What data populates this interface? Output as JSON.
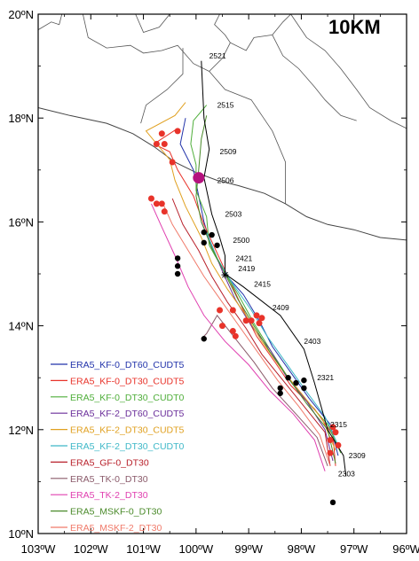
{
  "title_badge": "10KM",
  "axes": {
    "lon_range": [
      -103,
      -96
    ],
    "lat_range": [
      10,
      20
    ],
    "x_ticks": [
      {
        "value": -103,
        "label": "103ºW"
      },
      {
        "value": -102,
        "label": "102ºW"
      },
      {
        "value": -101,
        "label": "101ºW"
      },
      {
        "value": -100,
        "label": "100ºW"
      },
      {
        "value": -99,
        "label": "99ºW"
      },
      {
        "value": -98,
        "label": "98ºW"
      },
      {
        "value": -97,
        "label": "97ºW"
      },
      {
        "value": -96,
        "label": "96ºW"
      }
    ],
    "y_ticks": [
      {
        "value": 10,
        "label": "10ºN"
      },
      {
        "value": 12,
        "label": "12ºN"
      },
      {
        "value": 14,
        "label": "14ºN"
      },
      {
        "value": 16,
        "label": "16ºN"
      },
      {
        "value": 18,
        "label": "18ºN"
      },
      {
        "value": 20,
        "label": "20ºN"
      }
    ]
  },
  "coastline": [
    [
      -103,
      18.2
    ],
    [
      -102.4,
      18.05
    ],
    [
      -101.7,
      17.9
    ],
    [
      -101.2,
      17.7
    ],
    [
      -100.8,
      17.45
    ],
    [
      -100.4,
      17.15
    ],
    [
      -100.0,
      16.95
    ],
    [
      -99.6,
      16.8
    ],
    [
      -99.2,
      16.7
    ],
    [
      -98.7,
      16.55
    ],
    [
      -98.3,
      16.35
    ],
    [
      -97.9,
      16.1
    ],
    [
      -97.5,
      15.95
    ],
    [
      -97.0,
      15.85
    ],
    [
      -96.5,
      15.7
    ],
    [
      -96.0,
      15.65
    ]
  ],
  "state_borders": [
    [
      [
        -103,
        19.7
      ],
      [
        -102.75,
        19.85
      ],
      [
        -102.6,
        19.8
      ],
      [
        -102.55,
        20
      ]
    ],
    [
      [
        -102.15,
        20
      ],
      [
        -102.05,
        19.55
      ],
      [
        -101.7,
        19.35
      ],
      [
        -101.25,
        19.4
      ],
      [
        -101.0,
        19.25
      ],
      [
        -100.65,
        19.3
      ],
      [
        -100.35,
        19.4
      ],
      [
        -100.05,
        19.05
      ],
      [
        -99.75,
        18.9
      ],
      [
        -99.5,
        19.15
      ],
      [
        -99.35,
        19.45
      ],
      [
        -99.05,
        19.3
      ],
      [
        -98.9,
        19.55
      ],
      [
        -98.55,
        19.6
      ],
      [
        -98.35,
        19.85
      ],
      [
        -98.2,
        20
      ]
    ],
    [
      [
        -101.15,
        20
      ],
      [
        -101.0,
        19.65
      ],
      [
        -100.7,
        19.75
      ],
      [
        -100.5,
        20
      ]
    ],
    [
      [
        -99.55,
        20
      ],
      [
        -99.65,
        19.8
      ],
      [
        -99.45,
        19.6
      ],
      [
        -99.35,
        19.45
      ]
    ],
    [
      [
        -100.25,
        19.35
      ],
      [
        -100.25,
        18.85
      ],
      [
        -100.55,
        18.55
      ],
      [
        -100.95,
        18.25
      ],
      [
        -101.05,
        17.9
      ]
    ],
    [
      [
        -99.75,
        18.9
      ],
      [
        -99.45,
        18.55
      ],
      [
        -98.95,
        18.35
      ],
      [
        -98.75,
        18.05
      ],
      [
        -98.55,
        17.75
      ],
      [
        -98.3,
        17.15
      ],
      [
        -98.3,
        16.35
      ]
    ],
    [
      [
        -98.2,
        20
      ],
      [
        -97.9,
        19.55
      ],
      [
        -97.55,
        19.3
      ],
      [
        -97.25,
        18.95
      ],
      [
        -96.95,
        18.55
      ],
      [
        -96.7,
        18.2
      ],
      [
        -96.3,
        17.95
      ],
      [
        -96.0,
        17.8
      ]
    ],
    [
      [
        -98.55,
        19.6
      ],
      [
        -98.35,
        19.2
      ],
      [
        -98.05,
        18.95
      ],
      [
        -97.75,
        18.6
      ],
      [
        -97.55,
        18.35
      ],
      [
        -97.25,
        18.05
      ],
      [
        -96.95,
        17.95
      ]
    ]
  ],
  "best_track": [
    {
      "time": "2521",
      "lon": -99.9,
      "lat": 19.1
    },
    {
      "time": "2515",
      "lon": -99.85,
      "lat": 18.0
    },
    {
      "time": "2509",
      "lon": -99.75,
      "lat": 17.4
    },
    {
      "time": "2506",
      "lon": -99.85,
      "lat": 16.85
    },
    {
      "time": "2503",
      "lon": -99.7,
      "lat": 16.15
    },
    {
      "time": "2500",
      "lon": -99.55,
      "lat": 15.7
    },
    {
      "time": "2421",
      "lon": -99.45,
      "lat": 15.35
    },
    {
      "time": "2419",
      "lon": -99.45,
      "lat": 15.0
    },
    {
      "time": "2415",
      "lon": -99.1,
      "lat": 14.75
    },
    {
      "time": "2409",
      "lon": -98.4,
      "lat": 14.2
    },
    {
      "time": "2403",
      "lon": -97.95,
      "lat": 13.55
    },
    {
      "time": "2321",
      "lon": -97.75,
      "lat": 12.9
    },
    {
      "time": "2315",
      "lon": -97.5,
      "lat": 12.0
    },
    {
      "time": "2309",
      "lon": -97.2,
      "lat": 11.5
    },
    {
      "time": "2303",
      "lon": -97.15,
      "lat": 11.1
    }
  ],
  "best_track_labels": [
    {
      "time": "2521",
      "lon": -99.75,
      "lat": 19.15
    },
    {
      "time": "2515",
      "lon": -99.6,
      "lat": 18.2
    },
    {
      "time": "2509",
      "lon": -99.55,
      "lat": 17.3
    },
    {
      "time": "2506",
      "lon": -99.6,
      "lat": 16.75
    },
    {
      "time": "2503",
      "lon": -99.45,
      "lat": 16.1
    },
    {
      "time": "2500",
      "lon": -99.3,
      "lat": 15.6
    },
    {
      "time": "2421",
      "lon": -99.25,
      "lat": 15.25
    },
    {
      "time": "2419",
      "lon": -99.2,
      "lat": 15.05
    },
    {
      "time": "2415",
      "lon": -98.9,
      "lat": 14.75
    },
    {
      "time": "2409",
      "lon": -98.55,
      "lat": 14.3
    },
    {
      "time": "2403",
      "lon": -97.95,
      "lat": 13.65
    },
    {
      "time": "2321",
      "lon": -97.7,
      "lat": 12.95
    },
    {
      "time": "2315",
      "lon": -97.45,
      "lat": 12.05
    },
    {
      "time": "2309",
      "lon": -97.1,
      "lat": 11.45
    },
    {
      "time": "2303",
      "lon": -97.3,
      "lat": 11.1
    }
  ],
  "landfall_marker": {
    "lon": -99.95,
    "lat": 16.85,
    "color": "#b5127e"
  },
  "best_track_star": {
    "lon": -99.45,
    "lat": 14.98
  },
  "simulations": [
    {
      "name": "ERA5_KF-0_DT60_CUDT5",
      "color": "#2233aa",
      "track": [
        [
          -97.3,
          11.5
        ],
        [
          -97.45,
          12.1
        ],
        [
          -97.85,
          12.6
        ],
        [
          -98.2,
          13.1
        ],
        [
          -98.55,
          13.6
        ],
        [
          -98.8,
          14.1
        ],
        [
          -99.1,
          14.6
        ],
        [
          -99.45,
          15.0
        ],
        [
          -99.7,
          15.5
        ],
        [
          -99.85,
          16.0
        ],
        [
          -99.95,
          16.5
        ],
        [
          -100.05,
          17.0
        ],
        [
          -100.3,
          17.5
        ],
        [
          -100.2,
          18.0
        ]
      ]
    },
    {
      "name": "ERA5_KF-0_DT30_CUDT5",
      "color": "#e8332a",
      "track": [
        [
          -97.35,
          11.3
        ],
        [
          -97.4,
          11.9
        ],
        [
          -97.75,
          12.4
        ],
        [
          -98.2,
          12.85
        ],
        [
          -98.5,
          13.3
        ],
        [
          -98.85,
          13.8
        ],
        [
          -99.1,
          14.3
        ],
        [
          -99.35,
          14.85
        ],
        [
          -99.6,
          15.4
        ],
        [
          -99.85,
          15.95
        ],
        [
          -100.05,
          16.5
        ],
        [
          -100.35,
          17.0
        ],
        [
          -100.5,
          17.35
        ],
        [
          -100.8,
          17.5
        ],
        [
          -100.35,
          17.8
        ]
      ]
    },
    {
      "name": "ERA5_KF-0_DT30_CUDT0",
      "color": "#4fae3a",
      "track": [
        [
          -97.25,
          11.55
        ],
        [
          -97.5,
          12.1
        ],
        [
          -97.85,
          12.5
        ],
        [
          -98.25,
          13.0
        ],
        [
          -98.6,
          13.55
        ],
        [
          -98.9,
          14.05
        ],
        [
          -99.2,
          14.6
        ],
        [
          -99.5,
          15.1
        ],
        [
          -99.75,
          15.55
        ],
        [
          -99.8,
          16.1
        ],
        [
          -100.0,
          16.6
        ],
        [
          -100.0,
          17.1
        ],
        [
          -100.1,
          17.5
        ],
        [
          -100.05,
          17.95
        ],
        [
          -99.8,
          18.25
        ]
      ]
    },
    {
      "name": "ERA5_KF-2_DT60_CUDT5",
      "color": "#6a2e9a",
      "track": [
        [
          -97.4,
          11.4
        ],
        [
          -97.55,
          12.0
        ],
        [
          -97.9,
          12.55
        ],
        [
          -98.3,
          13.05
        ],
        [
          -98.6,
          13.55
        ],
        [
          -98.95,
          14.0
        ],
        [
          -99.25,
          14.5
        ],
        [
          -99.5,
          15.05
        ],
        [
          -99.7,
          15.55
        ],
        [
          -99.9,
          16.0
        ]
      ]
    },
    {
      "name": "ERA5_KF-2_DT30_CUDT5",
      "color": "#e0a020",
      "track": [
        [
          -97.35,
          11.6
        ],
        [
          -97.6,
          12.2
        ],
        [
          -98.0,
          12.7
        ],
        [
          -98.4,
          13.2
        ],
        [
          -98.75,
          13.7
        ],
        [
          -99.05,
          14.2
        ],
        [
          -99.4,
          14.7
        ],
        [
          -99.7,
          15.2
        ],
        [
          -99.9,
          15.7
        ],
        [
          -100.2,
          16.3
        ],
        [
          -100.4,
          16.8
        ],
        [
          -100.5,
          17.2
        ],
        [
          -100.95,
          17.75
        ],
        [
          -100.4,
          18.05
        ],
        [
          -100.2,
          18.3
        ]
      ]
    },
    {
      "name": "ERA5_KF-2_DT30_CUDT0",
      "color": "#3fb8c8",
      "track": [
        [
          -97.3,
          11.7
        ],
        [
          -97.55,
          12.25
        ],
        [
          -97.95,
          12.8
        ],
        [
          -98.3,
          13.3
        ],
        [
          -98.65,
          13.8
        ],
        [
          -98.95,
          14.3
        ],
        [
          -99.3,
          14.8
        ],
        [
          -99.6,
          15.3
        ],
        [
          -99.8,
          15.8
        ]
      ]
    },
    {
      "name": "ERA5_GF-0_DT30",
      "color": "#b8202a",
      "track": [
        [
          -97.45,
          11.3
        ],
        [
          -97.55,
          11.95
        ],
        [
          -97.95,
          12.45
        ],
        [
          -98.35,
          12.95
        ],
        [
          -98.75,
          13.45
        ],
        [
          -99.05,
          13.95
        ],
        [
          -99.4,
          14.45
        ],
        [
          -99.7,
          14.95
        ],
        [
          -99.95,
          15.45
        ],
        [
          -100.25,
          15.95
        ],
        [
          -100.45,
          16.45
        ]
      ]
    },
    {
      "name": "ERA5_TK-0_DT30",
      "color": "#8a5a6a",
      "track": [
        [
          -97.5,
          11.3
        ],
        [
          -97.7,
          11.85
        ],
        [
          -98.1,
          12.3
        ],
        [
          -98.55,
          12.8
        ],
        [
          -98.9,
          13.3
        ],
        [
          -99.25,
          13.75
        ],
        [
          -99.6,
          14.2
        ],
        [
          -99.8,
          13.85
        ],
        [
          -99.9,
          13.75
        ]
      ]
    },
    {
      "name": "ERA5_TK-2_DT30",
      "color": "#e040b0",
      "track": [
        [
          -97.55,
          11.2
        ],
        [
          -97.75,
          11.8
        ],
        [
          -98.15,
          12.3
        ],
        [
          -98.6,
          12.75
        ],
        [
          -99.0,
          13.25
        ],
        [
          -99.45,
          13.7
        ],
        [
          -99.85,
          14.2
        ],
        [
          -100.15,
          14.75
        ],
        [
          -100.4,
          15.35
        ],
        [
          -100.65,
          15.9
        ],
        [
          -100.85,
          16.35
        ]
      ]
    },
    {
      "name": "ERA5_MSKF-0_DT30",
      "color": "#4a8a2a",
      "track": [
        [
          -97.35,
          11.35
        ],
        [
          -97.5,
          12.0
        ],
        [
          -97.9,
          12.5
        ],
        [
          -98.25,
          13.0
        ],
        [
          -98.6,
          13.5
        ],
        [
          -98.9,
          14.0
        ],
        [
          -99.2,
          14.5
        ],
        [
          -99.45,
          15.0
        ],
        [
          -99.7,
          15.5
        ],
        [
          -99.9,
          16.0
        ],
        [
          -100.0,
          16.5
        ],
        [
          -99.95,
          17.0
        ],
        [
          -99.9,
          17.6
        ],
        [
          -99.8,
          18.05
        ]
      ]
    },
    {
      "name": "ERA5_MSKF-2_DT30",
      "color": "#f07a6a",
      "track": [
        [
          -97.45,
          11.3
        ],
        [
          -97.65,
          11.9
        ],
        [
          -98.05,
          12.45
        ],
        [
          -98.45,
          12.95
        ],
        [
          -98.8,
          13.45
        ],
        [
          -99.15,
          13.95
        ],
        [
          -99.5,
          14.45
        ],
        [
          -99.85,
          14.95
        ],
        [
          -100.15,
          15.45
        ],
        [
          -100.45,
          15.95
        ],
        [
          -100.65,
          16.4
        ]
      ]
    }
  ],
  "red_markers": [
    [
      -100.65,
      17.7
    ],
    [
      -100.6,
      17.5
    ],
    [
      -100.75,
      17.5
    ],
    [
      -100.35,
      17.75
    ],
    [
      -100.45,
      17.15
    ],
    [
      -100.85,
      16.45
    ],
    [
      -100.75,
      16.35
    ],
    [
      -100.65,
      16.35
    ],
    [
      -100.6,
      16.2
    ],
    [
      -99.55,
      14.3
    ],
    [
      -99.3,
      14.3
    ],
    [
      -99.5,
      14.0
    ],
    [
      -99.3,
      13.9
    ],
    [
      -99.25,
      13.8
    ],
    [
      -99.05,
      14.1
    ],
    [
      -98.95,
      14.1
    ],
    [
      -98.8,
      14.05
    ],
    [
      -98.85,
      14.2
    ],
    [
      -98.75,
      14.15
    ],
    [
      -97.4,
      12.05
    ],
    [
      -97.35,
      11.95
    ],
    [
      -97.45,
      11.8
    ],
    [
      -97.3,
      11.7
    ],
    [
      -97.45,
      11.55
    ]
  ],
  "black_markers": [
    [
      -99.85,
      15.8
    ],
    [
      -99.7,
      15.75
    ],
    [
      -99.85,
      15.6
    ],
    [
      -99.6,
      15.55
    ],
    [
      -100.35,
      15.3
    ],
    [
      -100.35,
      15.15
    ],
    [
      -100.35,
      15.0
    ],
    [
      -99.85,
      13.75
    ],
    [
      -98.25,
      13.0
    ],
    [
      -98.1,
      12.9
    ],
    [
      -97.95,
      12.95
    ],
    [
      -97.95,
      12.8
    ],
    [
      -98.4,
      12.8
    ],
    [
      -98.4,
      12.7
    ],
    [
      -97.4,
      10.6
    ]
  ],
  "legend_label_colors": {
    "ERA5_KF-0_DT60_CUDT5": "#2233aa",
    "ERA5_KF-0_DT30_CUDT5": "#e8332a",
    "ERA5_KF-0_DT30_CUDT0": "#4fae3a",
    "ERA5_KF-2_DT60_CUDT5": "#6a2e9a",
    "ERA5_KF-2_DT30_CUDT5": "#e0a020",
    "ERA5_KF-2_DT30_CUDT0": "#3fb8c8",
    "ERA5_GF-0_DT30": "#b8202a",
    "ERA5_TK-0_DT30": "#8a5a6a",
    "ERA5_TK-2_DT30": "#e040b0",
    "ERA5_MSKF-0_DT30": "#4a8a2a",
    "ERA5_MSKF-2_DT30": "#f07a6a"
  }
}
